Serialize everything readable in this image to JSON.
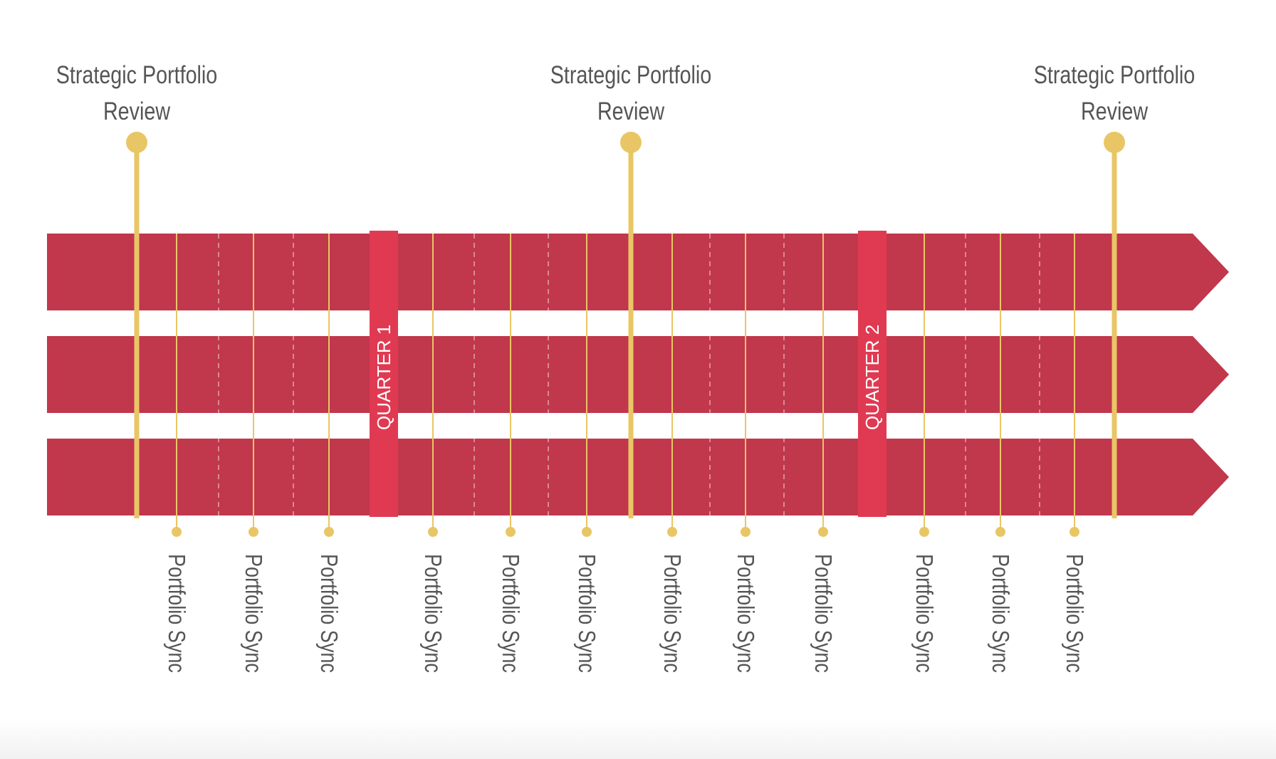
{
  "diagram": {
    "review_label": "Strategic Portfolio Review",
    "sync_label": "Portfolio Sync",
    "quarters": [
      "QUARTER 1",
      "QUARTER 2"
    ],
    "colors": {
      "band": "#c1374c",
      "quarter_bar": "#e03a52",
      "marker": "#e9c665",
      "text": "#555555"
    }
  }
}
